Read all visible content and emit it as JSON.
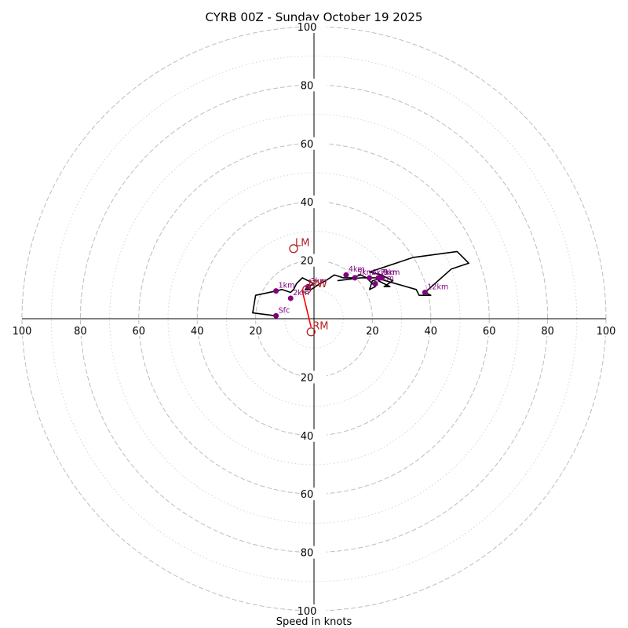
{
  "chart_data": {
    "type": "hodograph",
    "title": "CYRB 00Z - Sunday October 19 2025",
    "xlabel": "Speed in knots",
    "xlim": [
      -100,
      100
    ],
    "ylim": [
      -100,
      100
    ],
    "ring_major": [
      20,
      40,
      60,
      80,
      100
    ],
    "ring_minor": [
      10,
      30,
      50,
      70,
      90
    ],
    "x_ticks": [
      {
        "v": -100,
        "label": "100"
      },
      {
        "v": -80,
        "label": "80"
      },
      {
        "v": -60,
        "label": "60"
      },
      {
        "v": -40,
        "label": "40"
      },
      {
        "v": -20,
        "label": "20"
      },
      {
        "v": 20,
        "label": "20"
      },
      {
        "v": 40,
        "label": "40"
      },
      {
        "v": 60,
        "label": "60"
      },
      {
        "v": 80,
        "label": "80"
      },
      {
        "v": 100,
        "label": "100"
      }
    ],
    "y_ticks": [
      {
        "v": 100,
        "label": "100"
      },
      {
        "v": 80,
        "label": "80"
      },
      {
        "v": 60,
        "label": "60"
      },
      {
        "v": 40,
        "label": "40"
      },
      {
        "v": 20,
        "label": "20"
      },
      {
        "v": -20,
        "label": "20"
      },
      {
        "v": -40,
        "label": "40"
      },
      {
        "v": -60,
        "label": "60"
      },
      {
        "v": -80,
        "label": "80"
      },
      {
        "v": -100,
        "label": "100"
      }
    ],
    "trace_color": "#000000",
    "marker_color": "#800080",
    "motion_color": "#b22222",
    "shear_color": "#ff0000",
    "trace": [
      [
        -13,
        1
      ],
      [
        -21,
        2
      ],
      [
        -20,
        8
      ],
      [
        -13,
        9.5
      ],
      [
        -11,
        10
      ],
      [
        -8,
        9
      ],
      [
        -7,
        10
      ],
      [
        -6,
        12
      ],
      [
        -4,
        14
      ],
      [
        -2,
        13
      ],
      [
        0,
        12
      ],
      [
        -2,
        11
      ],
      [
        -3,
        10
      ],
      [
        -1,
        10
      ],
      [
        2,
        12
      ],
      [
        4,
        13
      ],
      [
        7,
        15
      ],
      [
        10,
        14
      ],
      [
        13,
        14
      ],
      [
        16,
        15
      ],
      [
        18,
        14
      ],
      [
        21,
        11
      ],
      [
        19,
        10
      ],
      [
        20,
        13
      ],
      [
        24,
        14
      ],
      [
        22,
        13
      ],
      [
        26,
        11
      ],
      [
        24,
        11
      ],
      [
        27,
        13
      ],
      [
        23,
        15
      ],
      [
        19,
        16
      ],
      [
        34,
        21
      ],
      [
        49,
        23
      ],
      [
        53,
        19
      ],
      [
        47,
        17
      ],
      [
        38,
        9
      ],
      [
        40,
        8
      ],
      [
        36,
        8
      ],
      [
        35,
        10
      ],
      [
        21,
        14
      ],
      [
        16,
        14
      ],
      [
        8,
        13
      ]
    ],
    "height_markers": [
      {
        "label": "Sfc",
        "x": -13,
        "y": 1
      },
      {
        "label": "1km",
        "x": -13,
        "y": 9.5
      },
      {
        "label": "2km",
        "x": -8,
        "y": 7
      },
      {
        "label": "3km",
        "x": -2,
        "y": 11
      },
      {
        "label": "4km",
        "x": 11,
        "y": 15
      },
      {
        "label": "5km",
        "x": 14,
        "y": 14
      },
      {
        "label": "6km",
        "x": 19,
        "y": 14
      },
      {
        "label": "7km",
        "x": 22,
        "y": 14
      },
      {
        "label": "8km",
        "x": 21,
        "y": 12
      },
      {
        "label": "9km",
        "x": 23,
        "y": 14
      },
      {
        "label": "12km",
        "x": 38,
        "y": 9
      }
    ],
    "storm_motion": {
      "RM": {
        "label": "RM",
        "x": -1,
        "y": -4.5
      },
      "LM": {
        "label": "LM",
        "x": -7,
        "y": 24
      },
      "MW": {
        "label": "MW",
        "x": -2.5,
        "y": 10
      }
    }
  }
}
